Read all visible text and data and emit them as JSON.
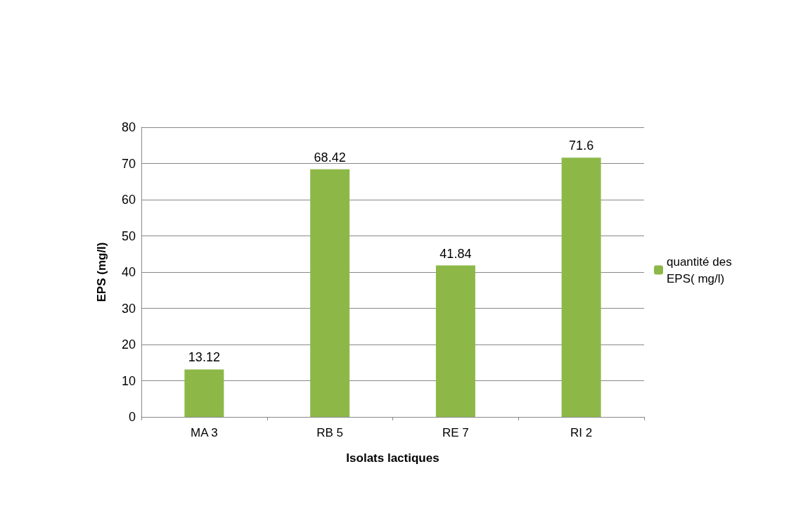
{
  "chart_data": {
    "type": "bar",
    "xlabel": "Isolats lactiques",
    "ylabel": "EPS (mg/l)",
    "categories": [
      "MA 3",
      "RB 5",
      "RE 7",
      "RI 2"
    ],
    "series": [
      {
        "name": "quantité des EPS( mg/l)",
        "color": "#8db848",
        "values": [
          13.12,
          68.42,
          41.84,
          71.6
        ]
      }
    ],
    "ylim": [
      0,
      80
    ],
    "yticks": [
      0,
      10,
      20,
      30,
      40,
      50,
      60,
      70,
      80
    ],
    "grid": "y",
    "legend": "right",
    "data_labels": true
  }
}
